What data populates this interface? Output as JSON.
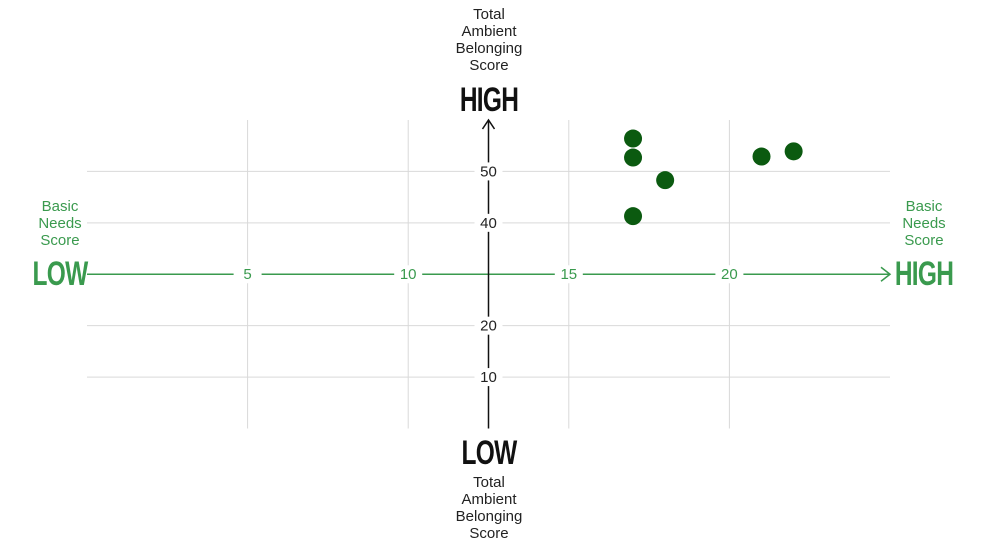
{
  "chart_data": {
    "type": "scatter",
    "x_label": "Basic Needs Score",
    "y_label": "Total Ambient Belonging Score",
    "x_low": "LOW",
    "x_high": "HIGH",
    "y_low": "LOW",
    "y_high": "HIGH",
    "x": [
      17,
      17,
      18,
      17,
      21,
      22
    ],
    "series": [
      {
        "color": "#0b5a10",
        "values": [
          56.4,
          52.7,
          48.3,
          41.3,
          52.9,
          53.9
        ]
      }
    ],
    "xlim": [
      0,
      25
    ],
    "ylim": [
      0,
      60
    ],
    "xticks": [
      5,
      10,
      15,
      20
    ],
    "yticks": [
      10,
      20,
      40,
      50
    ],
    "grid": true,
    "axis_color": "#3a9a4e"
  }
}
